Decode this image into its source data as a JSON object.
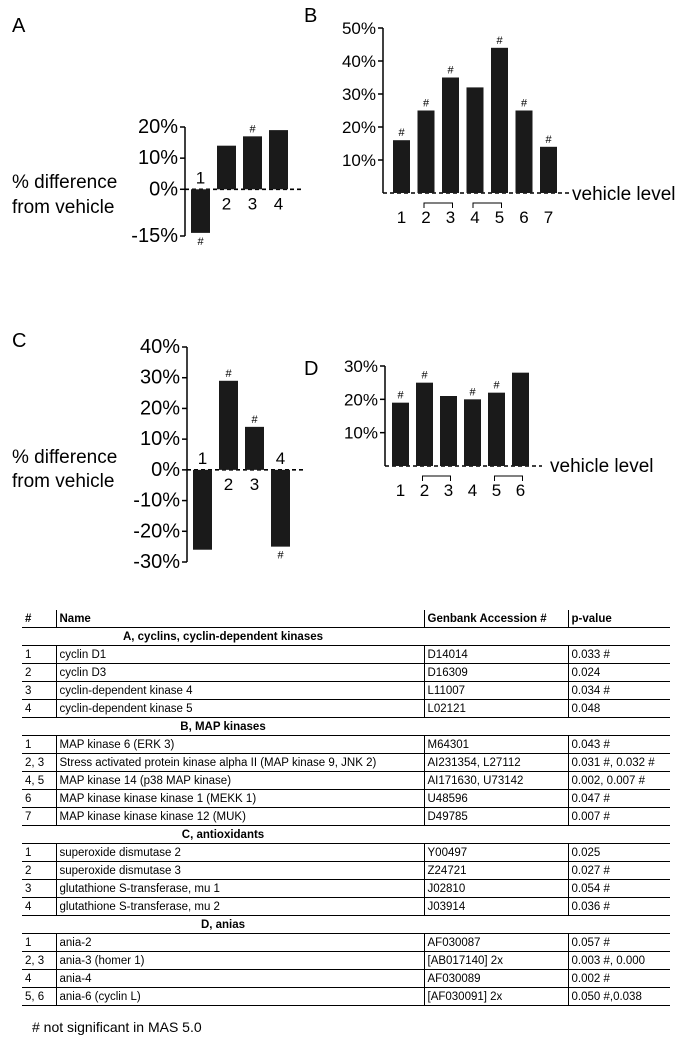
{
  "chart_data": [
    {
      "panel": "A",
      "type": "bar",
      "categories": [
        "1",
        "2",
        "3",
        "4"
      ],
      "values": [
        -14,
        14,
        17,
        19
      ],
      "markers": [
        "#",
        "",
        "#",
        ""
      ],
      "ylim": [
        -15,
        20
      ],
      "yticks": [
        "20%",
        "10%",
        "0%",
        "-15%"
      ],
      "ylabel": [
        "% difference",
        "from vehicle"
      ],
      "baseline_label": ""
    },
    {
      "panel": "B",
      "type": "bar",
      "categories": [
        "1",
        "2",
        "3",
        "4",
        "5",
        "6",
        "7"
      ],
      "values": [
        16,
        25,
        35,
        32,
        44,
        25,
        14
      ],
      "markers": [
        "#",
        "#",
        "#",
        "",
        "#",
        "#",
        "#"
      ],
      "ylim": [
        0,
        50
      ],
      "yticks": [
        "50%",
        "40%",
        "30%",
        "20%",
        "10%"
      ],
      "baseline_label": "vehicle level",
      "brackets": [
        [
          "2",
          "3"
        ],
        [
          "4",
          "5"
        ]
      ]
    },
    {
      "panel": "C",
      "type": "bar",
      "categories": [
        "1",
        "2",
        "3",
        "4"
      ],
      "values": [
        -26,
        29,
        14,
        -25
      ],
      "markers": [
        "",
        "#",
        "#",
        "#"
      ],
      "ylim": [
        -30,
        40
      ],
      "yticks": [
        "40%",
        "30%",
        "20%",
        "10%",
        "0%",
        "-10%",
        "-20%",
        "-30%"
      ],
      "ylabel": [
        "% difference",
        "from vehicle"
      ],
      "baseline_label": ""
    },
    {
      "panel": "D",
      "type": "bar",
      "categories": [
        "1",
        "2",
        "3",
        "4",
        "5",
        "6"
      ],
      "values": [
        19,
        25,
        21,
        20,
        22,
        28
      ],
      "markers": [
        "#",
        "#",
        "",
        "#",
        "#",
        ""
      ],
      "ylim": [
        0,
        30
      ],
      "yticks": [
        "30%",
        "20%",
        "10%"
      ],
      "baseline_label": "vehicle level",
      "brackets": [
        [
          "2",
          "3"
        ],
        [
          "5",
          "6"
        ]
      ]
    }
  ],
  "table": {
    "headers": [
      "#",
      "Name",
      "Genbank Accession #",
      "p-value"
    ],
    "sections": [
      {
        "title": "A, cyclins, cyclin-dependent kinases",
        "rows": [
          [
            "1",
            "cyclin D1",
            "D14014",
            "0.033 #"
          ],
          [
            "2",
            "cyclin D3",
            "D16309",
            "0.024"
          ],
          [
            "3",
            "cyclin-dependent kinase 4",
            "L11007",
            "0.034 #"
          ],
          [
            "4",
            "cyclin-dependent kinase 5",
            "L02121",
            "0.048"
          ]
        ]
      },
      {
        "title": "B, MAP kinases",
        "rows": [
          [
            "1",
            "MAP kinase 6 (ERK 3)",
            "M64301",
            "0.043 #"
          ],
          [
            "2, 3",
            "Stress activated protein kinase alpha II (MAP kinase 9, JNK 2)",
            "AI231354, L27112",
            "0.031 #, 0.032 #"
          ],
          [
            "4, 5",
            "MAP kinase 14 (p38 MAP kinase)",
            "AI171630, U73142",
            "0.002, 0.007 #"
          ],
          [
            "6",
            "MAP kinase kinase kinase 1 (MEKK 1)",
            "U48596",
            "0.047 #"
          ],
          [
            "7",
            "MAP kinase kinase kinase 12 (MUK)",
            "D49785",
            "0.007 #"
          ]
        ]
      },
      {
        "title": "C, antioxidants",
        "rows": [
          [
            "1",
            "superoxide dismutase 2",
            "Y00497",
            "0.025"
          ],
          [
            "2",
            "superoxide dismutase 3",
            "Z24721",
            "0.027 #"
          ],
          [
            "3",
            "glutathione S-transferase, mu 1",
            "J02810",
            "0.054 #"
          ],
          [
            "4",
            "glutathione S-transferase, mu 2",
            "J03914",
            "0.036 #"
          ]
        ]
      },
      {
        "title": "D, anias",
        "rows": [
          [
            "1",
            "ania-2",
            "AF030087",
            "0.057 #"
          ],
          [
            "2, 3",
            "ania-3 (homer 1)",
            "[AB017140] 2x",
            "0.003 #, 0.000"
          ],
          [
            "4",
            "ania-4",
            "AF030089",
            "0.002 #"
          ],
          [
            "5, 6",
            "ania-6 (cyclin L)",
            "[AF030091] 2x",
            "0.050 #,0.038"
          ]
        ]
      }
    ]
  },
  "footnote": "# not significant in MAS 5.0"
}
